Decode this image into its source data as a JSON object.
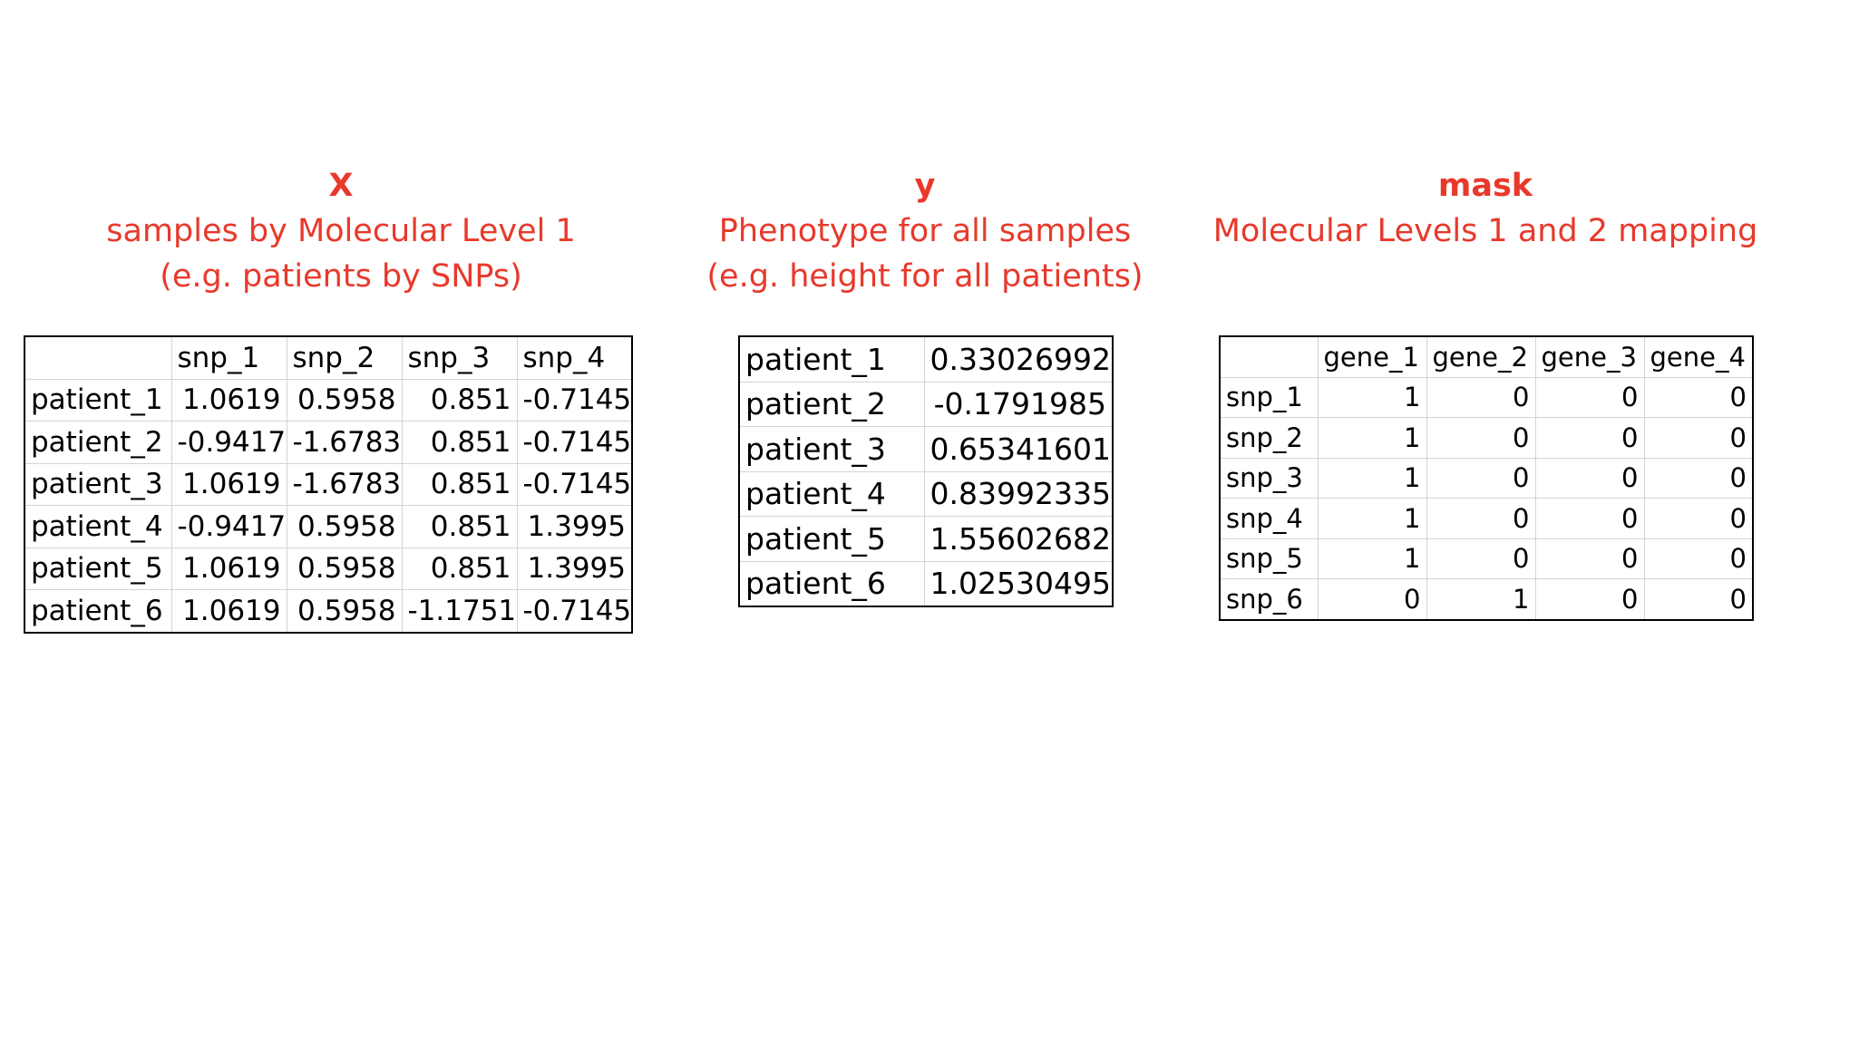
{
  "panels": {
    "x": {
      "title": "X",
      "subtitle_1": "samples by Molecular Level 1",
      "subtitle_2": "(e.g. patients by SNPs)",
      "table": {
        "columns": [
          "snp_1",
          "snp_2",
          "snp_3",
          "snp_4"
        ],
        "rows": [
          {
            "label": "patient_1",
            "values": [
              "1.0619",
              "0.5958",
              "0.851",
              "-0.7145"
            ]
          },
          {
            "label": "patient_2",
            "values": [
              "-0.9417",
              "-1.6783",
              "0.851",
              "-0.7145"
            ]
          },
          {
            "label": "patient_3",
            "values": [
              "1.0619",
              "-1.6783",
              "0.851",
              "-0.7145"
            ]
          },
          {
            "label": "patient_4",
            "values": [
              "-0.9417",
              "0.5958",
              "0.851",
              "1.3995"
            ]
          },
          {
            "label": "patient_5",
            "values": [
              "1.0619",
              "0.5958",
              "0.851",
              "1.3995"
            ]
          },
          {
            "label": "patient_6",
            "values": [
              "1.0619",
              "0.5958",
              "-1.1751",
              "-0.7145"
            ]
          }
        ]
      }
    },
    "y": {
      "title": "y",
      "subtitle_1": "Phenotype for all samples",
      "subtitle_2": "(e.g. height for all patients)",
      "table": {
        "rows": [
          {
            "label": "patient_1",
            "value": "0.33026992"
          },
          {
            "label": "patient_2",
            "value": "-0.1791985"
          },
          {
            "label": "patient_3",
            "value": "0.65341601"
          },
          {
            "label": "patient_4",
            "value": "0.83992335"
          },
          {
            "label": "patient_5",
            "value": "1.55602682"
          },
          {
            "label": "patient_6",
            "value": "1.02530495"
          }
        ]
      }
    },
    "mask": {
      "title": "mask",
      "subtitle_1": "Molecular Levels 1 and 2 mapping",
      "table": {
        "columns": [
          "gene_1",
          "gene_2",
          "gene_3",
          "gene_4"
        ],
        "rows": [
          {
            "label": "snp_1",
            "values": [
              "1",
              "0",
              "0",
              "0"
            ]
          },
          {
            "label": "snp_2",
            "values": [
              "1",
              "0",
              "0",
              "0"
            ]
          },
          {
            "label": "snp_3",
            "values": [
              "1",
              "0",
              "0",
              "0"
            ]
          },
          {
            "label": "snp_4",
            "values": [
              "1",
              "0",
              "0",
              "0"
            ]
          },
          {
            "label": "snp_5",
            "values": [
              "1",
              "0",
              "0",
              "0"
            ]
          },
          {
            "label": "snp_6",
            "values": [
              "0",
              "1",
              "0",
              "0"
            ]
          }
        ]
      }
    }
  },
  "colors": {
    "title_red": "#e8392b"
  }
}
